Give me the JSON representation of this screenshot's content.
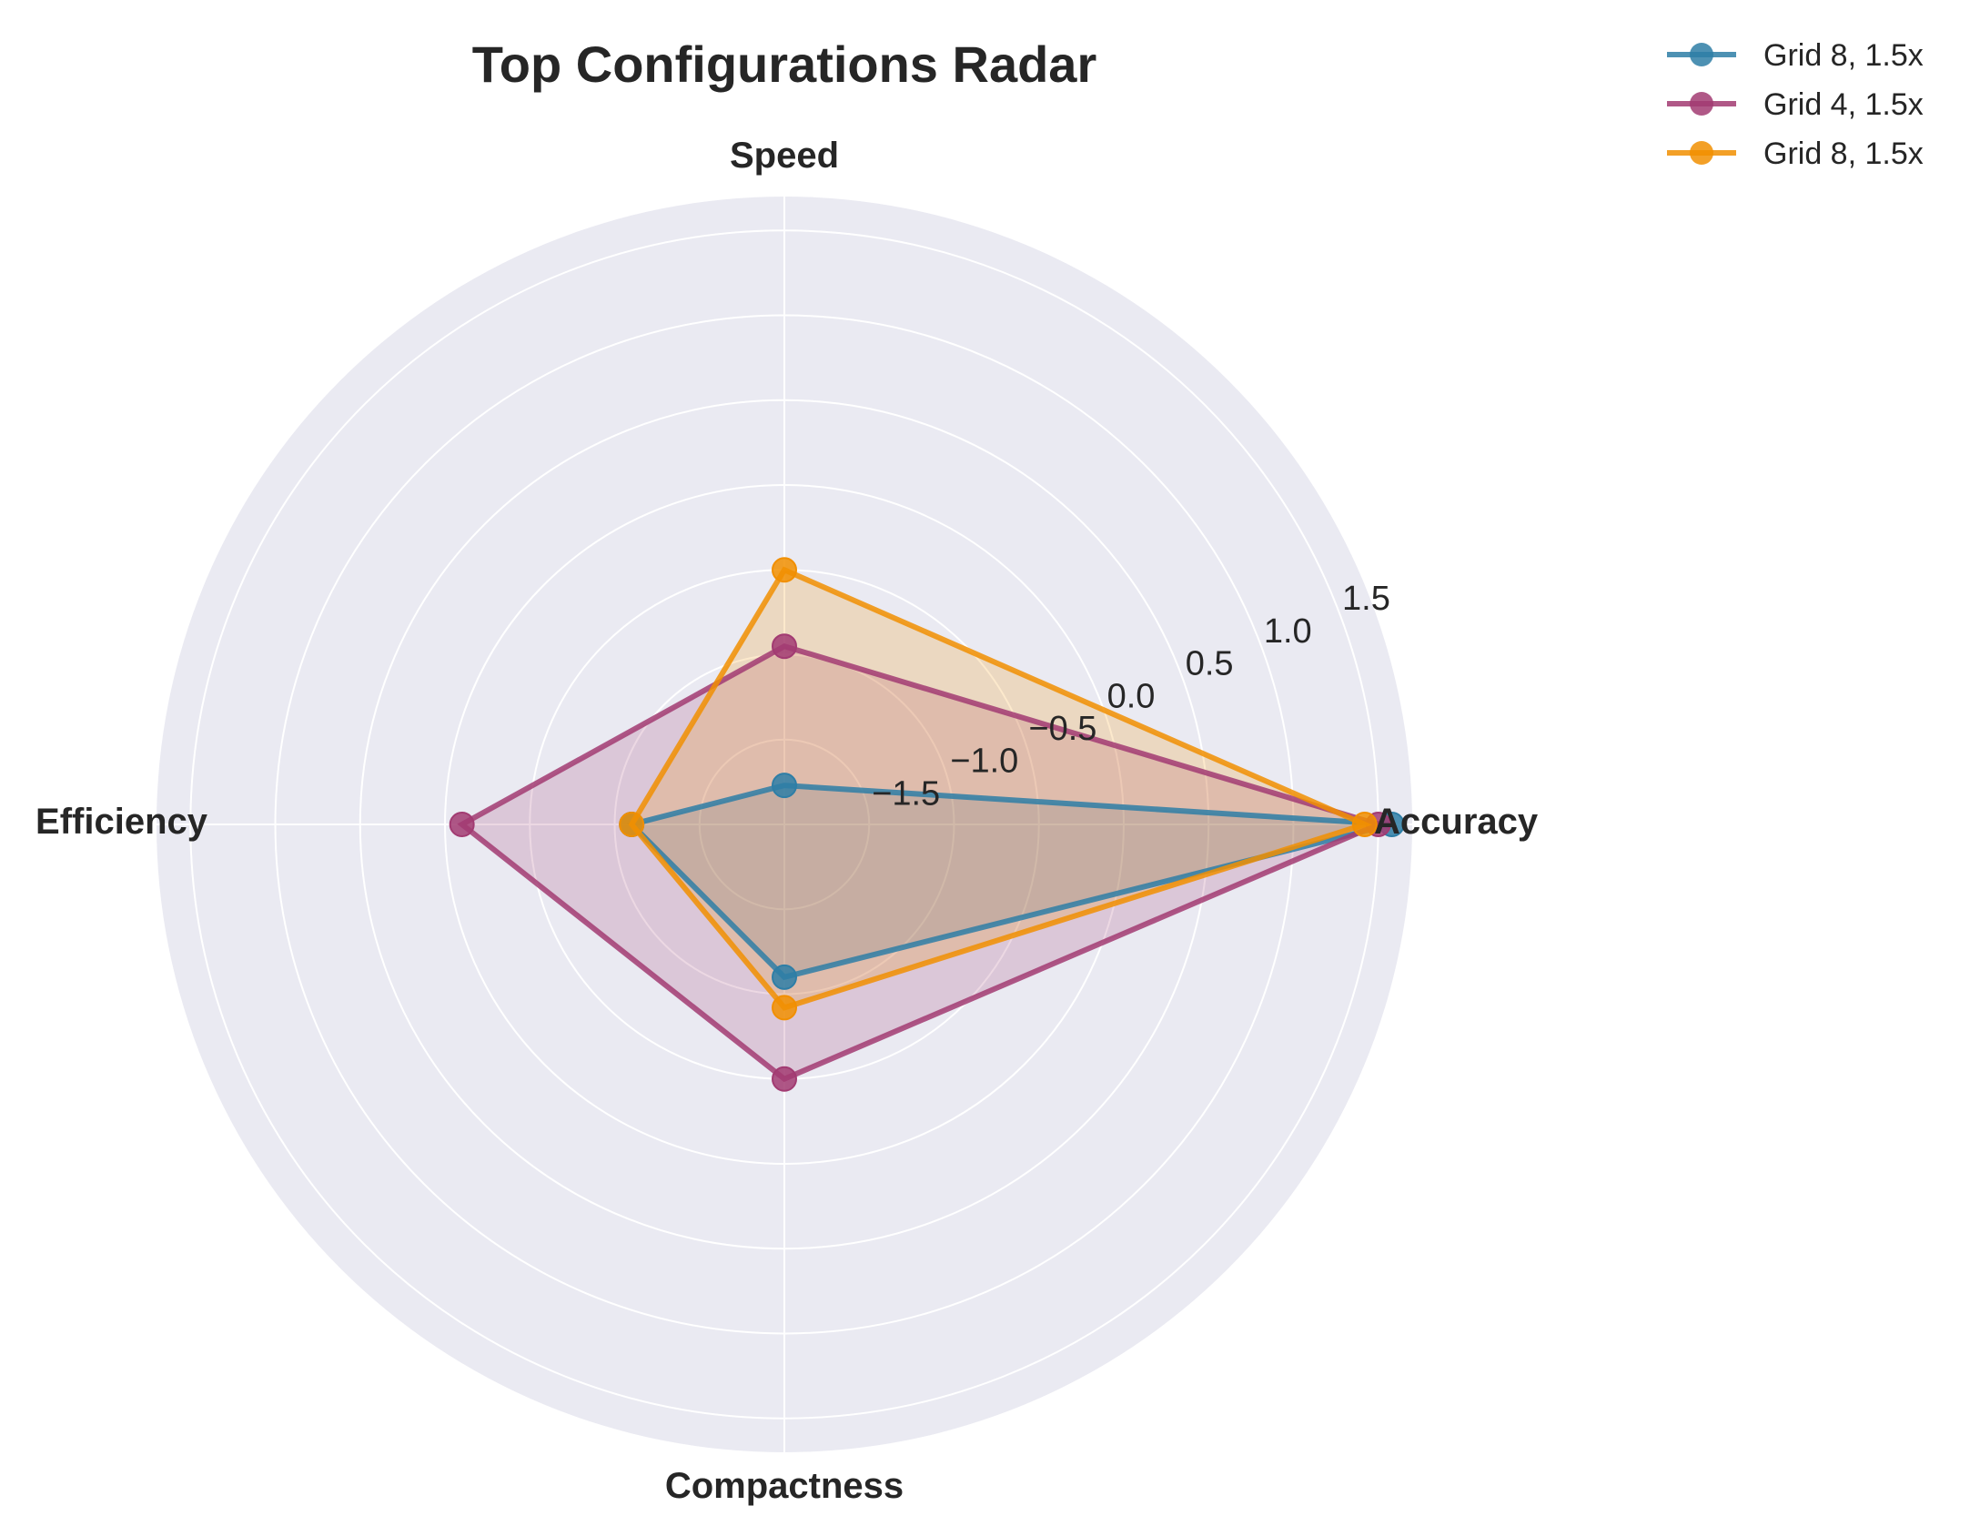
{
  "chart_data": {
    "type": "radar",
    "title": "Top Configurations Radar",
    "axes": [
      "Accuracy",
      "Speed",
      "Efficiency",
      "Compactness"
    ],
    "rlim": [
      -2.0,
      1.7
    ],
    "rticks": [
      -1.5,
      -1.0,
      -0.5,
      0.0,
      0.5,
      1.0,
      1.5
    ],
    "rtick_labels": [
      "−1.5",
      "−1.0",
      "−0.5",
      "0.0",
      "0.5",
      "1.0",
      "1.5"
    ],
    "grid": true,
    "legend_position": "top-right",
    "series": [
      {
        "name": "Grid 8, 1.5x",
        "color": "#2e7ea6",
        "values": [
          1.58,
          -1.77,
          -1.1,
          -1.1
        ]
      },
      {
        "name": "Grid 4, 1.5x",
        "color": "#a23b72",
        "values": [
          1.5,
          -0.95,
          -0.1,
          -0.5
        ]
      },
      {
        "name": "Grid 8, 1.5x",
        "color": "#f18f01",
        "values": [
          1.42,
          -0.5,
          -1.1,
          -0.92
        ]
      }
    ]
  }
}
